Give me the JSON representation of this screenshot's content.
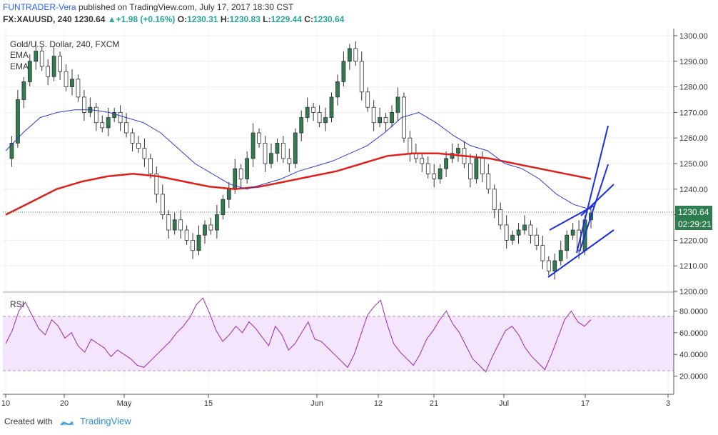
{
  "header": {
    "author": "FUNTRADER-Vera",
    "published": "published on TradingView.com, July 17, 2017 18:30 CST",
    "symbol": "FX:XAUUSD, 240",
    "last": "1230.64",
    "arrow": "▲",
    "change": "+1.98 (+0.16%)",
    "o_label": "O:",
    "o": "1230.31",
    "h_label": "H:",
    "h": "1230.83",
    "l_label": "L:",
    "l": "1229.44",
    "c_label": "C:",
    "c": "1230.64"
  },
  "legend": {
    "title": "Gold/U.S. Dollar, 240, FXCM",
    "ema1": "EMA",
    "ema2": "EMA"
  },
  "rsi_label": "RSI",
  "price_badge": "1230.64",
  "time_badge": "02:29:21",
  "footer": {
    "created_with": "Created with",
    "brand": "TradingView"
  },
  "colors": {
    "up": "#26a69a",
    "down": "#ef5350",
    "candle_body_up": "#2f7d4f",
    "candle_body_down": "#ffffff",
    "ema_fast": "#2c3bd6",
    "ema_slow": "#e0201a",
    "trendlines": "#1a2ee6",
    "rsi_line": "#9c27b0",
    "rsi_band": "#f3e5fb"
  },
  "chart_data": [
    {
      "type": "line",
      "title": "Gold/U.S. Dollar, 240, FXCM",
      "price_axis": {
        "ylim": [
          1200,
          1300
        ],
        "ticks": [
          "1300.00",
          "1290.00",
          "1280.00",
          "1270.00",
          "1260.00",
          "1250.00",
          "1240.00",
          "1230.00",
          "1220.00",
          "1210.00",
          "1200.00"
        ]
      },
      "time_axis": {
        "ticks": [
          "10",
          "20",
          "May",
          "15",
          "Jun",
          "12",
          "21",
          "Jul",
          "17",
          "3"
        ]
      },
      "series": [
        {
          "name": "",
          "kind": "close",
          "values": [
            1252,
            1258,
            1275,
            1282,
            1290,
            1294,
            1288,
            1284,
            1292,
            1286,
            1280,
            1283,
            1276,
            1270,
            1272,
            1266,
            1264,
            1268,
            1270,
            1266,
            1262,
            1258,
            1256,
            1252,
            1246,
            1238,
            1230,
            1224,
            1228,
            1224,
            1220,
            1216,
            1222,
            1226,
            1224,
            1230,
            1236,
            1240,
            1248,
            1244,
            1252,
            1262,
            1258,
            1250,
            1254,
            1258,
            1252,
            1250,
            1262,
            1268,
            1272,
            1270,
            1266,
            1268,
            1276,
            1282,
            1290,
            1295,
            1290,
            1278,
            1272,
            1266,
            1268,
            1266,
            1270,
            1276,
            1260,
            1254,
            1252,
            1250,
            1246,
            1244,
            1248,
            1252,
            1254,
            1256,
            1250,
            1244,
            1252,
            1246,
            1240,
            1232,
            1226,
            1220,
            1222,
            1224,
            1226,
            1222,
            1218,
            1212,
            1208,
            1212,
            1216,
            1222,
            1224,
            1216,
            1228,
            1230.64
          ]
        },
        {
          "name": "EMA",
          "kind": "ema_fast",
          "values": [
            1255,
            1262,
            1268,
            1270,
            1271,
            1271,
            1270,
            1268,
            1266,
            1262,
            1256,
            1250,
            1246,
            1242,
            1240,
            1242,
            1244,
            1247,
            1249,
            1251,
            1254,
            1257,
            1262,
            1268,
            1270,
            1266,
            1261,
            1257,
            1255,
            1250,
            1248,
            1244,
            1238,
            1234,
            1232
          ]
        },
        {
          "name": "EMA",
          "kind": "ema_slow",
          "values": [
            1230,
            1235,
            1240,
            1243,
            1245,
            1246,
            1245,
            1243,
            1241,
            1240,
            1241,
            1243,
            1245,
            1247,
            1250,
            1253,
            1254,
            1254,
            1253,
            1252,
            1250,
            1248,
            1246,
            1244
          ]
        }
      ]
    },
    {
      "type": "line",
      "title": "RSI",
      "ylim": [
        0,
        100
      ],
      "ticks": [
        "80.0000",
        "60.0000",
        "40.0000",
        "20.0000"
      ],
      "bands": [
        25,
        75
      ],
      "series": [
        {
          "name": "RSI",
          "values": [
            50,
            62,
            80,
            88,
            76,
            64,
            58,
            72,
            66,
            55,
            60,
            48,
            42,
            54,
            50,
            46,
            38,
            44,
            40,
            36,
            30,
            28,
            34,
            40,
            46,
            52,
            60,
            66,
            74,
            86,
            92,
            78,
            62,
            52,
            58,
            66,
            60,
            70,
            64,
            56,
            48,
            66,
            58,
            44,
            50,
            60,
            70,
            54,
            52,
            46,
            40,
            34,
            28,
            40,
            58,
            76,
            84,
            90,
            68,
            50,
            42,
            36,
            30,
            40,
            54,
            62,
            72,
            80,
            68,
            60,
            48,
            36,
            30,
            24,
            38,
            50,
            62,
            66,
            58,
            46,
            38,
            32,
            26,
            40,
            56,
            72,
            80,
            70,
            66,
            72
          ]
        }
      ]
    }
  ]
}
